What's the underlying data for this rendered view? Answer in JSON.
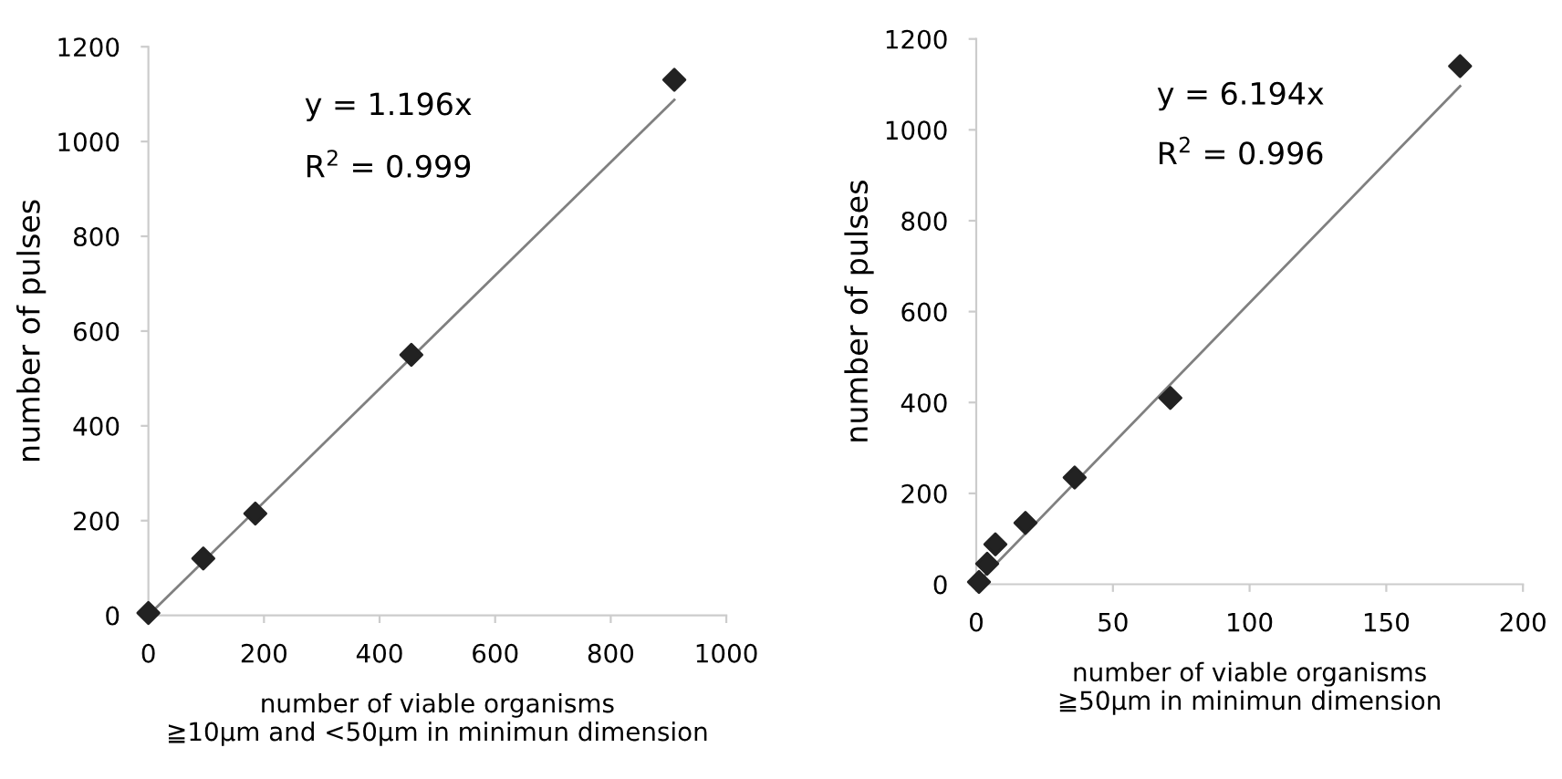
{
  "chart_data": [
    {
      "type": "scatter",
      "xlabel": "number of viable organisms\n≧10μm and <50μm in minimun dimension",
      "ylabel": "number of pulses",
      "annotations": [
        "y = 1.196x",
        "R$^{2}$ = 0.999"
      ],
      "xlim": [
        0,
        1000
      ],
      "ylim": [
        0,
        1200
      ],
      "xticks": [
        0,
        200,
        400,
        600,
        800,
        1000
      ],
      "yticks": [
        0,
        200,
        400,
        600,
        800,
        1000,
        1200
      ],
      "grid": false,
      "marker": "diamond",
      "series": [
        {
          "color": "#222222",
          "x": [
            0,
            95,
            185,
            455,
            910
          ],
          "values": [
            5,
            120,
            215,
            550,
            1130
          ]
        },
        {
          "type": "line",
          "color": "#808080",
          "marker": "none",
          "line_style": "solid",
          "x": [
            0,
            910
          ],
          "values": [
            0,
            1088
          ]
        }
      ]
    },
    {
      "type": "scatter",
      "xlabel": "number of viable organisms\n≧50μm in minimun dimension",
      "ylabel": "number of pulses",
      "annotations": [
        "y = 6.194x",
        "R$^{2}$ = 0.996"
      ],
      "xlim": [
        0,
        200
      ],
      "ylim": [
        0,
        1200
      ],
      "xticks": [
        0,
        50,
        100,
        150,
        200
      ],
      "yticks": [
        0,
        200,
        400,
        600,
        800,
        1000,
        1200
      ],
      "grid": false,
      "marker": "diamond",
      "series": [
        {
          "color": "#222222",
          "x": [
            1,
            4,
            7,
            18,
            36,
            71,
            177
          ],
          "values": [
            5,
            45,
            88,
            135,
            235,
            410,
            1140
          ]
        },
        {
          "type": "line",
          "color": "#808080",
          "marker": "none",
          "line_style": "solid",
          "x": [
            0,
            177
          ],
          "values": [
            0,
            1096
          ]
        }
      ]
    }
  ]
}
